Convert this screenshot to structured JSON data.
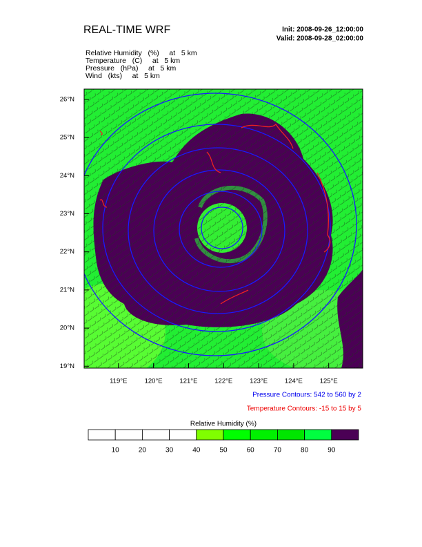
{
  "header": {
    "title": "REAL-TIME WRF",
    "init": "Init: 2008-09-26_12:00:00",
    "valid": "Valid: 2008-09-28_02:00:00"
  },
  "fields": [
    "Relative Humidity   (%)     at   5 km",
    "Temperature   (C)     at   5 km",
    "Pressure   (hPa)     at   5 km",
    "Wind   (kts)     at   5 km"
  ],
  "map": {
    "xlim": [
      118.02,
      125.97
    ],
    "ylim": [
      18.95,
      26.27
    ],
    "lat_ticks": [
      {
        "value": 26,
        "label": "26°N"
      },
      {
        "value": 25,
        "label": "25°N"
      },
      {
        "value": 24,
        "label": "24°N"
      },
      {
        "value": 23,
        "label": "23°N"
      },
      {
        "value": 22,
        "label": "22°N"
      },
      {
        "value": 21,
        "label": "21°N"
      },
      {
        "value": 20,
        "label": "20°N"
      },
      {
        "value": 19,
        "label": "19°N"
      }
    ],
    "lon_ticks": [
      {
        "value": 119,
        "label": "119°E"
      },
      {
        "value": 120,
        "label": "120°E"
      },
      {
        "value": 121,
        "label": "121°E"
      },
      {
        "value": 122,
        "label": "122°E"
      },
      {
        "value": 123,
        "label": "123°E"
      },
      {
        "value": 124,
        "label": "124°E"
      },
      {
        "value": 125,
        "label": "125°E"
      }
    ]
  },
  "contour_notes": [
    "Pressure Contours: 542 to 560 by 2",
    "Temperature Contours: -15 to 15 by 5"
  ],
  "colorbar": {
    "title": "Relative Humidity  (%)",
    "levels": [
      10,
      20,
      30,
      40,
      50,
      60,
      70,
      80,
      90
    ],
    "colors": [
      "#ffffff",
      "#ffffff",
      "#ffffff",
      "#ffffff",
      "#80ff00",
      "#00ff00",
      "#00f000",
      "#00e600",
      "#00ff40",
      "#4b0055"
    ]
  }
}
